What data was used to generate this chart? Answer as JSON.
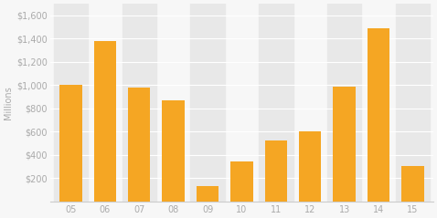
{
  "categories": [
    "05",
    "06",
    "07",
    "08",
    "09",
    "10",
    "11",
    "12",
    "13",
    "14",
    "15"
  ],
  "values": [
    1000,
    1380,
    975,
    870,
    130,
    340,
    520,
    600,
    990,
    1490,
    300
  ],
  "bar_color": "#F5A623",
  "ylabel": "Millions",
  "ylim": [
    0,
    1700
  ],
  "yticks": [
    200,
    400,
    600,
    800,
    1000,
    1200,
    1400,
    1600
  ],
  "background_color": "#f7f7f7",
  "plot_background_color": "#f7f7f7",
  "stripe_color": "#e8e8e8",
  "grid_color": "#ffffff",
  "axis_label_color": "#aaaaaa",
  "tick_label_color": "#aaaaaa"
}
